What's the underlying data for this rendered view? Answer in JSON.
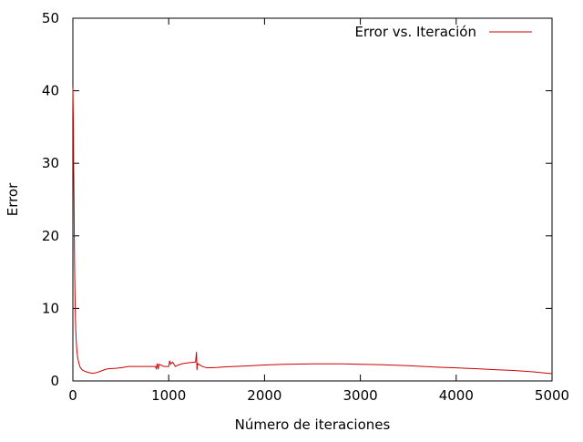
{
  "chart_data": {
    "type": "line",
    "xlabel": "Número de iteraciones",
    "ylabel": "Error",
    "xlim": [
      0,
      5000
    ],
    "ylim": [
      0,
      50
    ],
    "xticks": [
      0,
      1000,
      2000,
      3000,
      4000,
      5000
    ],
    "yticks": [
      0,
      10,
      20,
      30,
      40,
      50
    ],
    "grid": false,
    "legend_position": "top-right",
    "series": [
      {
        "name": "Error vs. Iteración",
        "color": "#cc0000",
        "points": [
          [
            0,
            40.5
          ],
          [
            5,
            36
          ],
          [
            8,
            30
          ],
          [
            12,
            25
          ],
          [
            15,
            20
          ],
          [
            18,
            16
          ],
          [
            22,
            12
          ],
          [
            26,
            9
          ],
          [
            30,
            7
          ],
          [
            35,
            5.6
          ],
          [
            40,
            4.5
          ],
          [
            45,
            3.8
          ],
          [
            50,
            3.2
          ],
          [
            60,
            2.6
          ],
          [
            70,
            2.1
          ],
          [
            80,
            1.8
          ],
          [
            100,
            1.5
          ],
          [
            130,
            1.3
          ],
          [
            170,
            1.15
          ],
          [
            200,
            1.05
          ],
          [
            230,
            1.1
          ],
          [
            260,
            1.2
          ],
          [
            300,
            1.4
          ],
          [
            340,
            1.6
          ],
          [
            380,
            1.7
          ],
          [
            450,
            1.75
          ],
          [
            520,
            1.85
          ],
          [
            580,
            2.0
          ],
          [
            700,
            2.0
          ],
          [
            860,
            2.0
          ],
          [
            870,
            1.7
          ],
          [
            880,
            2.4
          ],
          [
            890,
            1.6
          ],
          [
            900,
            2.3
          ],
          [
            950,
            2.0
          ],
          [
            1000,
            2.0
          ],
          [
            1010,
            2.8
          ],
          [
            1020,
            2.3
          ],
          [
            1040,
            2.6
          ],
          [
            1070,
            2.0
          ],
          [
            1100,
            2.2
          ],
          [
            1150,
            2.4
          ],
          [
            1200,
            2.5
          ],
          [
            1280,
            2.6
          ],
          [
            1290,
            4.0
          ],
          [
            1295,
            1.5
          ],
          [
            1300,
            2.4
          ],
          [
            1350,
            2.0
          ],
          [
            1400,
            1.8
          ],
          [
            1500,
            1.85
          ],
          [
            1600,
            1.95
          ],
          [
            1800,
            2.05
          ],
          [
            2000,
            2.2
          ],
          [
            2200,
            2.3
          ],
          [
            2500,
            2.35
          ],
          [
            2800,
            2.35
          ],
          [
            3000,
            2.3
          ],
          [
            3200,
            2.25
          ],
          [
            3500,
            2.1
          ],
          [
            3800,
            1.9
          ],
          [
            4000,
            1.8
          ],
          [
            4200,
            1.7
          ],
          [
            4400,
            1.55
          ],
          [
            4600,
            1.45
          ],
          [
            4800,
            1.25
          ],
          [
            5000,
            1.0
          ]
        ]
      }
    ]
  }
}
